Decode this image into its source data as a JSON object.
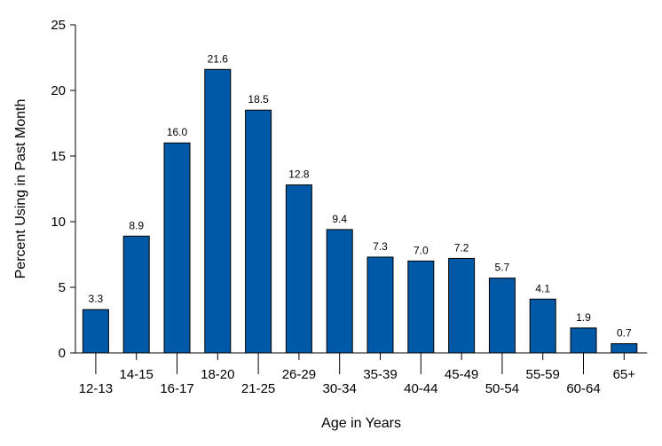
{
  "chart_data": {
    "type": "bar",
    "title": "",
    "xlabel": "Age in Years",
    "ylabel": "Percent Using in Past Month",
    "ylim": [
      0,
      25
    ],
    "yticks": [
      0,
      5,
      10,
      15,
      20,
      25
    ],
    "grid": false,
    "bar_color": "#0059A6",
    "categories": [
      "12-13",
      "14-15",
      "16-17",
      "18-20",
      "21-25",
      "26-29",
      "30-34",
      "35-39",
      "40-44",
      "45-49",
      "50-54",
      "55-59",
      "60-64",
      "65+"
    ],
    "values": [
      3.3,
      8.9,
      16.0,
      21.6,
      18.5,
      12.8,
      9.4,
      7.3,
      7.0,
      7.2,
      5.7,
      4.1,
      1.9,
      0.7
    ],
    "value_labels": [
      "3.3",
      "8.9",
      "16.0",
      "21.6",
      "18.5",
      "12.8",
      "9.4",
      "7.3",
      "7.0",
      "7.2",
      "5.7",
      "4.1",
      "1.9",
      "0.7"
    ]
  }
}
